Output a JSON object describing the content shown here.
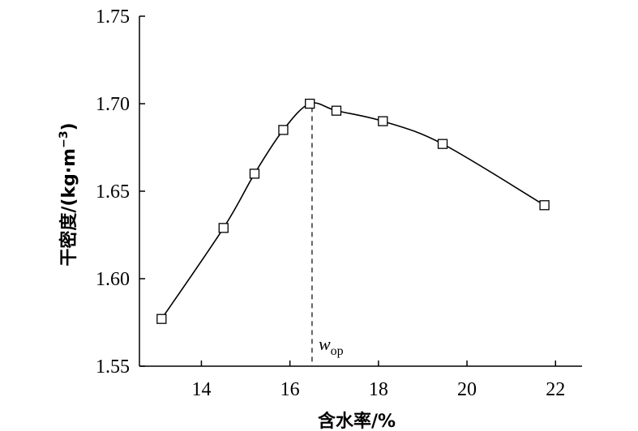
{
  "chart_data": {
    "type": "line",
    "xlabel": "含水率/%",
    "ylabel": "干密度/(kg·m",
    "ylabel_exp": "−3",
    "ylabel_close": ")",
    "xlim": [
      12.6,
      22.6
    ],
    "ylim": [
      1.55,
      1.75
    ],
    "x_ticks": [
      14,
      16,
      18,
      20,
      22
    ],
    "y_ticks": [
      1.55,
      1.6,
      1.65,
      1.7,
      1.75
    ],
    "x_tick_labels": [
      "14",
      "16",
      "18",
      "20",
      "22"
    ],
    "y_tick_labels": [
      "1.55",
      "1.60",
      "1.65",
      "1.70",
      "1.75"
    ],
    "grid": false,
    "marker": "square-open",
    "series": [
      {
        "x": [
          13.1,
          14.5,
          15.2,
          15.85,
          16.45,
          17.05,
          18.1,
          19.45,
          21.75
        ],
        "y": [
          1.577,
          1.629,
          1.66,
          1.685,
          1.7,
          1.696,
          1.69,
          1.677,
          1.642
        ]
      }
    ],
    "annotations": [
      {
        "x": 16.5,
        "symbol": "w",
        "subscript": "op"
      }
    ]
  }
}
